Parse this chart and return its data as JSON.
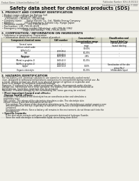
{
  "bg_color": "#f0efe8",
  "text_color": "#222222",
  "header_left": "Product Name: Lithium Ion Battery Cell",
  "header_right": "Publication Number: SDS-LIB-050110\nEstablishment / Revision: Dec.7 2010",
  "title": "Safety data sheet for chemical products (SDS)",
  "section1_title": "1. PRODUCT AND COMPANY IDENTIFICATION",
  "section1_lines": [
    "• Product name: Lithium Ion Battery Cell",
    "• Product code: Cylindrical-type cell",
    "    (CR18650U, CR18650L, CR18650A)",
    "• Company name:      Sanyo Electric Co., Ltd., Mobile Energy Company",
    "• Address:               2001 Kamitokura, Sumoto City, Hyogo, Japan",
    "• Telephone number:   +81-799-26-4111",
    "• Fax number: +81-799-26-4129",
    "• Emergency telephone number (Weekday): +81-799-26-3962",
    "                              (Night and holiday): +81-799-26-4101"
  ],
  "section2_title": "2. COMPOSITION / INFORMATION ON INGREDIENTS",
  "section2_intro": "• Substance or preparation: Preparation",
  "section2_sub": "  • Information about the chemical nature of product:",
  "table_headers": [
    "Component chemical name",
    "CAS number",
    "Concentration /\nConcentration range",
    "Classification and\nhazard labeling"
  ],
  "row_data_col1": [
    "Several name",
    "Lithium cobalt oxide\n(LiMnCoO₂)",
    "Iron",
    "Aluminum",
    "Graphite\n(Metal in graphite-1)\n(Al-Mo in graphite-1)",
    "Copper",
    "Organic electrolyte"
  ],
  "row_data_col2": [
    "-",
    "-",
    "7439-89-6\n7439-89-6",
    "7429-90-5",
    "-\n7440-42-5\n7440-44-0",
    "7440-50-8",
    "-"
  ],
  "row_data_col3": [
    "Concentration\nrange",
    "30-60%",
    "10-25%",
    "2-8%",
    "10-25%",
    "0-10%",
    "10-20%"
  ],
  "row_data_col4": [
    "Classification and\nhazard labeling",
    "-",
    "-",
    "-",
    "-",
    "Sensitization of the skin\ngroup No.2",
    "Inflammable liquid"
  ],
  "section3_title": "3. HAZARDS IDENTIFICATION",
  "section3_para1": "   For the battery cell, chemical substances are stored in a hermetically sealed metal case, designed to withstand temperatures and pressures encountered during normal use. As a result, during normal use, there is no physical danger of ignition or explosion and there is no danger of hazardous materials leakage.",
  "section3_para2": "   However, if exposed to a fire, added mechanical shocks, decomposed, under electric voltage too, mechanical force to be operated. The battery cell case will be breached at fire/explosion, hazardous materials may be released.",
  "section3_para3": "   Moreover, if heated strongly by the surrounding fire, some gas may be emitted.",
  "section3_effects": "• Most important hazard and effects:",
  "section3_human": "  Human health effects:",
  "section3_inh": "    Inhalation: The release of the electrolyte has an anesthesia action and stimulates a respiratory tract.",
  "section3_skin": "    Skin contact: The release of the electrolyte stimulates a skin. The electrolyte skin contact causes a sore and stimulation on the skin.",
  "section3_eye1": "    Eye contact: The release of the electrolyte stimulates eyes. The electrolyte eye contact causes a sore",
  "section3_eye2": "    and stimulation on the eye. Especially, a substance that causes a strong inflammation of the eye is",
  "section3_eye3": "    contained.",
  "section3_env1": "    Environmental effects: Since a battery cell remains in the environment, do not throw out it into the",
  "section3_env2": "    environment.",
  "section3_specific": "• Specific hazards:",
  "section3_sp1": "    If the electrolyte contacts with water, it will generate detrimental hydrogen fluoride.",
  "section3_sp2": "    Since the neat electrolyte is inflammable liquid, do not bring close to fire."
}
